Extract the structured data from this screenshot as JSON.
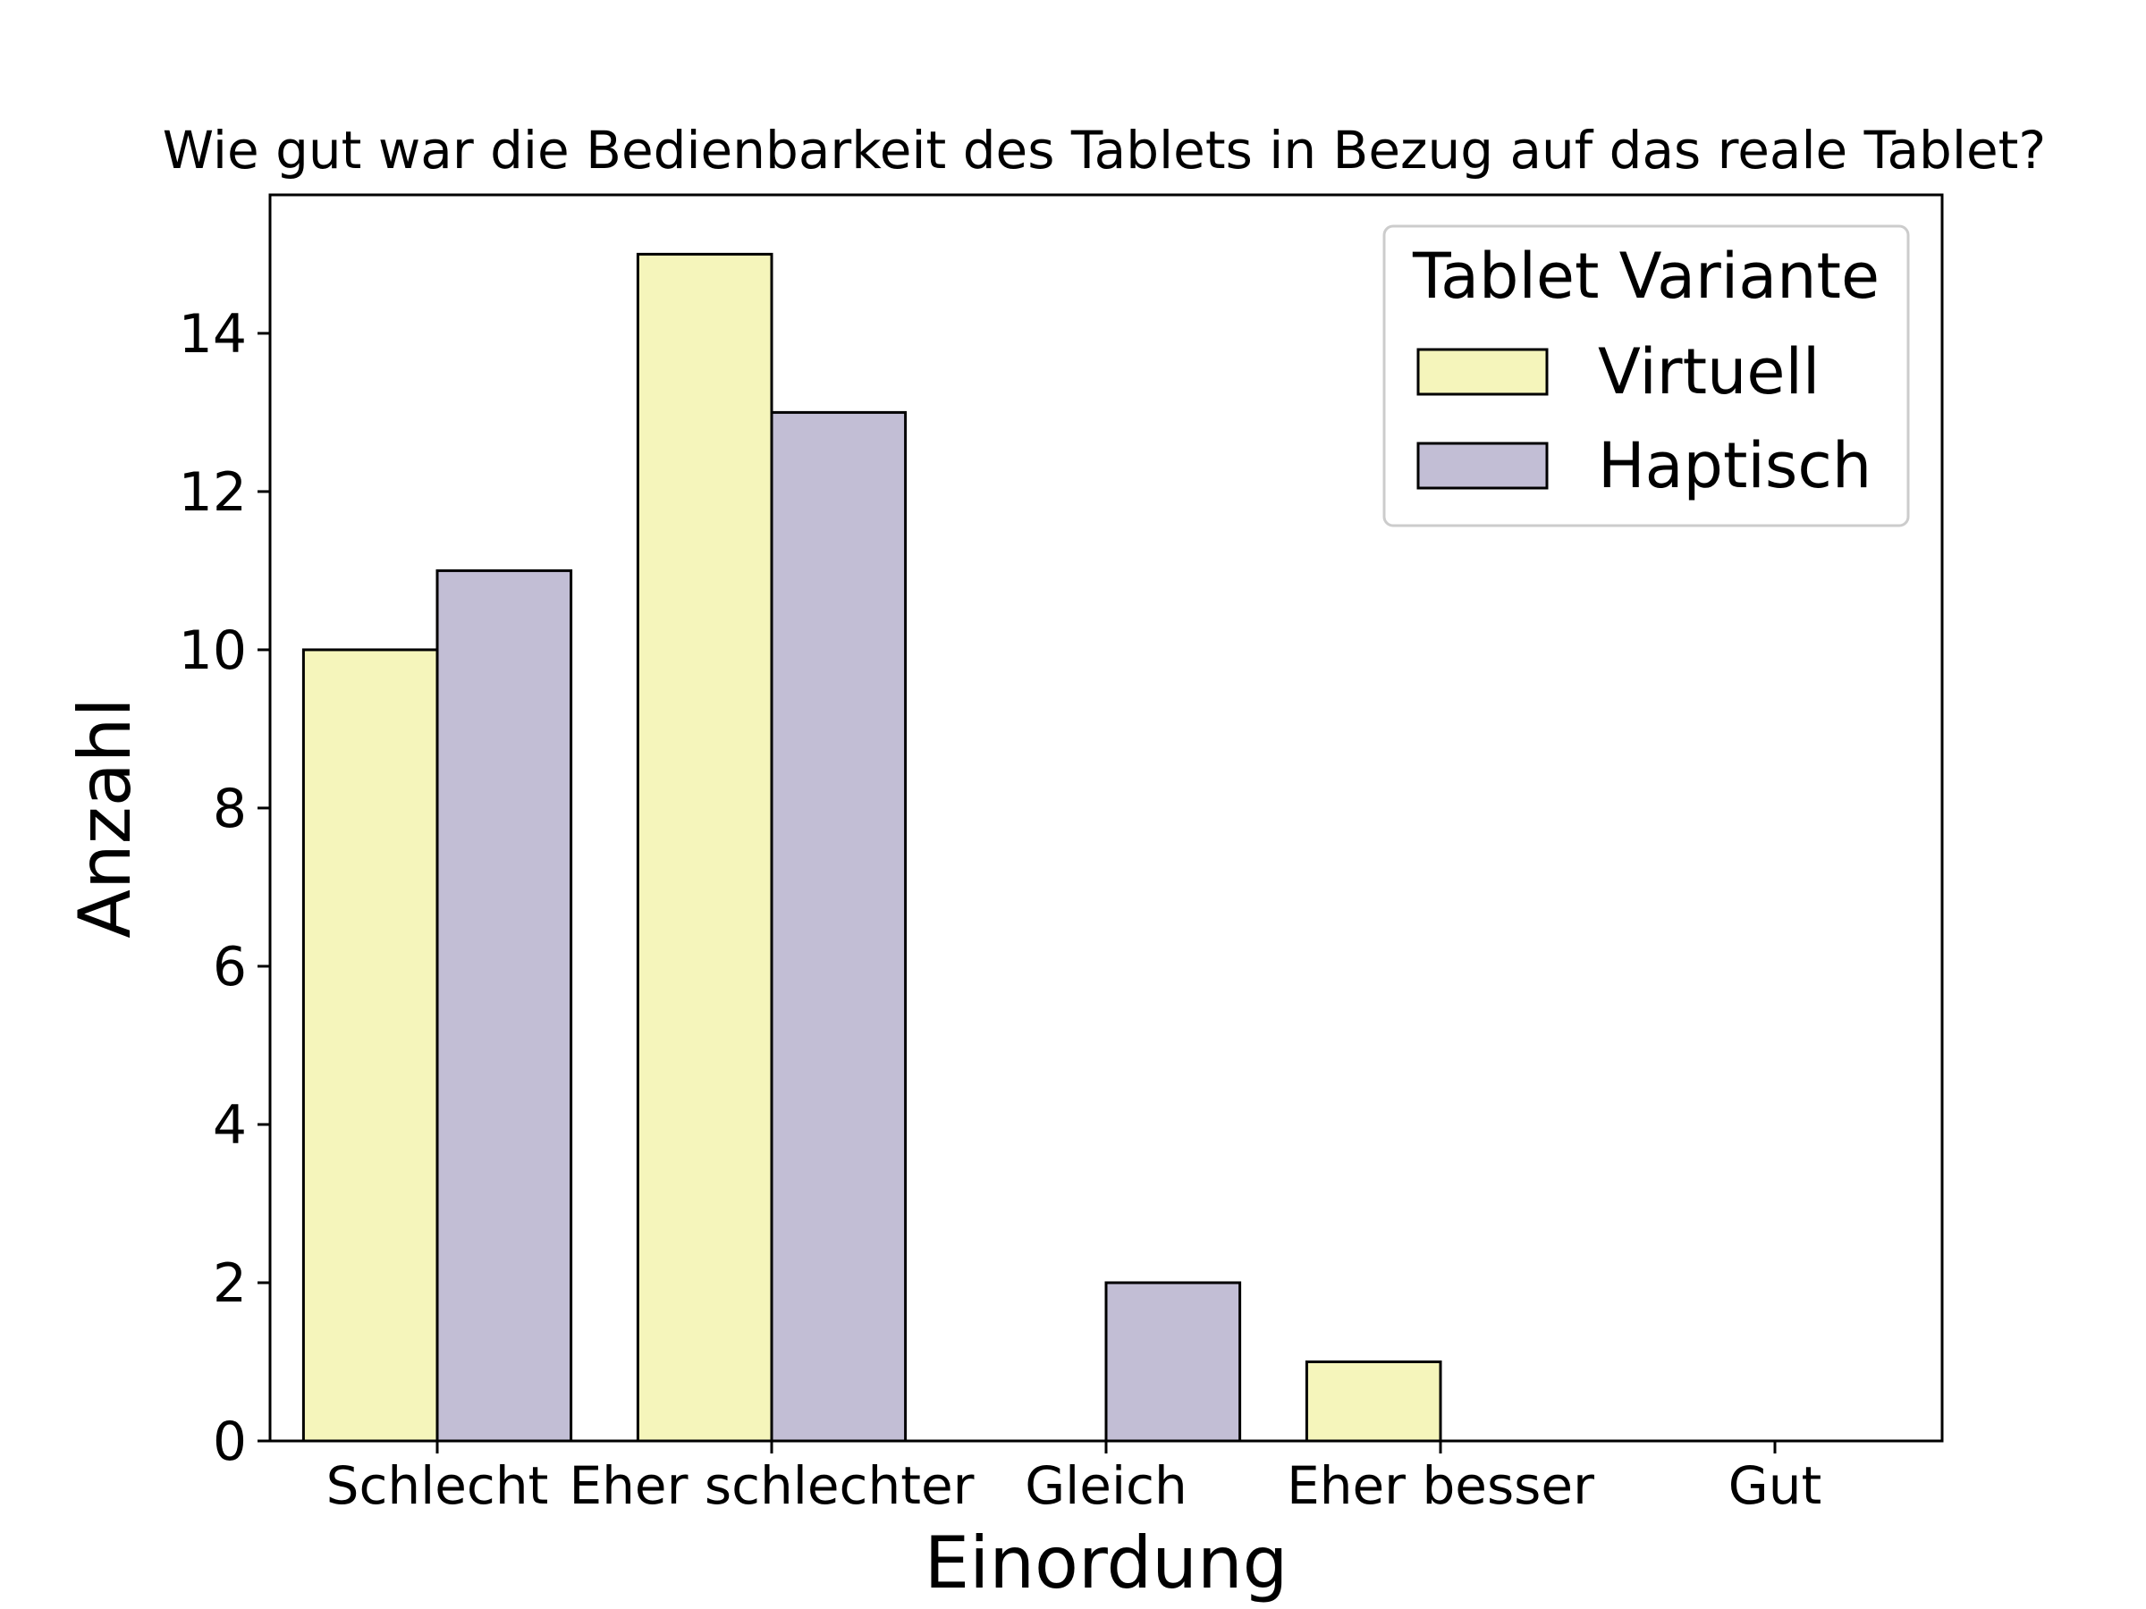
{
  "chart_data": {
    "type": "bar",
    "title": "Wie gut war die Bedienbarkeit des Tablets in Bezug auf das reale Tablet?",
    "xlabel": "Einordung",
    "ylabel": "Anzahl",
    "categories": [
      "Schlecht",
      "Eher schlechter",
      "Gleich",
      "Eher besser",
      "Gut"
    ],
    "series": [
      {
        "name": "Virtuell",
        "values": [
          10,
          15,
          0,
          1,
          0
        ],
        "color": "#f5f5bb"
      },
      {
        "name": "Haptisch",
        "values": [
          11,
          13,
          2,
          0,
          0
        ],
        "color": "#c2bed5"
      }
    ],
    "ylim": [
      0,
      15.75
    ],
    "yticks": [
      0,
      2,
      4,
      6,
      8,
      10,
      12,
      14
    ],
    "grid": false,
    "legend": {
      "title": "Tablet Variante",
      "position": "top-right"
    }
  }
}
